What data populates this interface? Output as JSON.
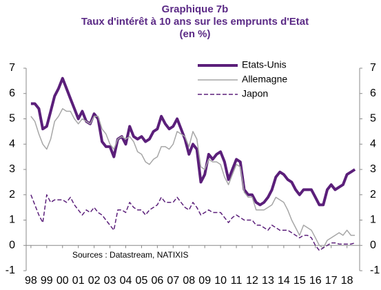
{
  "chart_data": {
    "type": "line",
    "title": "Graphique 7b",
    "subtitle": "Taux d'intérêt à 10 ans sur les emprunts d'Etat",
    "subtitle2": "(en %)",
    "source": "Sources : Datastream, NATIXIS",
    "x": [
      1998,
      1998.25,
      1998.5,
      1998.75,
      1999,
      1999.25,
      1999.5,
      1999.75,
      2000,
      2000.25,
      2000.5,
      2000.75,
      2001,
      2001.25,
      2001.5,
      2001.75,
      2002,
      2002.25,
      2002.5,
      2002.75,
      2003,
      2003.25,
      2003.5,
      2003.75,
      2004,
      2004.25,
      2004.5,
      2004.75,
      2005,
      2005.25,
      2005.5,
      2005.75,
      2006,
      2006.25,
      2006.5,
      2006.75,
      2007,
      2007.25,
      2007.5,
      2007.75,
      2008,
      2008.25,
      2008.5,
      2008.75,
      2009,
      2009.25,
      2009.5,
      2009.75,
      2010,
      2010.25,
      2010.5,
      2010.75,
      2011,
      2011.25,
      2011.5,
      2011.75,
      2012,
      2012.25,
      2012.5,
      2012.75,
      2013,
      2013.25,
      2013.5,
      2013.75,
      2014,
      2014.25,
      2014.5,
      2014.75,
      2015,
      2015.25,
      2015.5,
      2015.75,
      2016,
      2016.25,
      2016.5,
      2016.75,
      2017,
      2017.25,
      2017.5,
      2017.75,
      2018,
      2018.25,
      2018.5
    ],
    "series": [
      {
        "name": "Etats-Unis",
        "color": "#5b1f7a",
        "linewidth": 4,
        "dashed": false,
        "values": [
          5.6,
          5.6,
          5.4,
          4.6,
          4.7,
          5.3,
          5.9,
          6.2,
          6.6,
          6.2,
          5.8,
          5.4,
          5.0,
          5.3,
          4.9,
          4.8,
          5.2,
          5.0,
          4.1,
          3.9,
          3.9,
          3.5,
          4.2,
          4.3,
          4.0,
          4.7,
          4.3,
          4.2,
          4.3,
          4.1,
          4.2,
          4.5,
          4.6,
          5.1,
          4.8,
          4.6,
          4.7,
          5.0,
          4.6,
          4.2,
          3.6,
          4.0,
          3.8,
          2.5,
          2.8,
          3.6,
          3.4,
          3.6,
          3.7,
          3.3,
          2.6,
          3.0,
          3.4,
          3.3,
          2.2,
          2.0,
          2.0,
          1.7,
          1.6,
          1.7,
          1.9,
          2.2,
          2.7,
          2.9,
          2.8,
          2.6,
          2.5,
          2.2,
          2.0,
          2.2,
          2.2,
          2.2,
          1.9,
          1.6,
          1.6,
          2.2,
          2.4,
          2.2,
          2.3,
          2.4,
          2.8,
          2.9,
          3.0
        ]
      },
      {
        "name": "Allemagne",
        "color": "#a6a6a6",
        "linewidth": 1.5,
        "dashed": false,
        "values": [
          5.1,
          4.9,
          4.4,
          4.0,
          3.8,
          4.2,
          4.9,
          5.1,
          5.4,
          5.3,
          5.3,
          5.0,
          4.8,
          5.0,
          4.9,
          4.8,
          5.1,
          5.1,
          4.6,
          4.4,
          4.0,
          3.8,
          4.2,
          4.3,
          4.2,
          4.3,
          4.1,
          3.7,
          3.6,
          3.3,
          3.2,
          3.4,
          3.5,
          3.9,
          3.9,
          3.8,
          4.0,
          4.5,
          4.4,
          4.3,
          3.9,
          4.5,
          4.2,
          3.1,
          3.0,
          3.4,
          3.3,
          3.3,
          3.2,
          2.7,
          2.4,
          2.8,
          3.2,
          3.1,
          2.1,
          1.9,
          1.9,
          1.4,
          1.4,
          1.4,
          1.5,
          1.6,
          1.9,
          1.8,
          1.7,
          1.4,
          1.0,
          0.7,
          0.4,
          0.8,
          0.7,
          0.6,
          0.3,
          0.0,
          -0.1,
          0.2,
          0.3,
          0.4,
          0.5,
          0.4,
          0.6,
          0.4,
          0.4
        ]
      },
      {
        "name": "Japon",
        "color": "#5b1f7a",
        "linewidth": 1.5,
        "dashed": true,
        "values": [
          2.0,
          1.6,
          1.2,
          0.9,
          2.0,
          1.7,
          1.8,
          1.8,
          1.8,
          1.7,
          1.9,
          1.6,
          1.4,
          1.2,
          1.4,
          1.3,
          1.5,
          1.3,
          1.2,
          1.0,
          0.8,
          0.6,
          1.4,
          1.4,
          1.3,
          1.7,
          1.5,
          1.4,
          1.4,
          1.2,
          1.4,
          1.5,
          1.6,
          1.9,
          1.7,
          1.7,
          1.7,
          1.9,
          1.7,
          1.5,
          1.4,
          1.7,
          1.5,
          1.2,
          1.3,
          1.4,
          1.3,
          1.3,
          1.3,
          1.1,
          0.9,
          1.1,
          1.2,
          1.1,
          1.0,
          1.0,
          1.0,
          0.8,
          0.8,
          0.7,
          0.6,
          0.8,
          0.7,
          0.6,
          0.6,
          0.6,
          0.5,
          0.4,
          0.3,
          0.4,
          0.4,
          0.3,
          0.0,
          -0.2,
          -0.1,
          0.0,
          0.1,
          0.1,
          0.05,
          0.05,
          0.05,
          0.05,
          0.1
        ]
      }
    ],
    "xlim": [
      1997.7,
      2018.8
    ],
    "xticks": [
      {
        "value": 1998,
        "label": "98"
      },
      {
        "value": 1999,
        "label": "99"
      },
      {
        "value": 2000,
        "label": "00"
      },
      {
        "value": 2001,
        "label": "01"
      },
      {
        "value": 2002,
        "label": "02"
      },
      {
        "value": 2003,
        "label": "03"
      },
      {
        "value": 2004,
        "label": "04"
      },
      {
        "value": 2005,
        "label": "05"
      },
      {
        "value": 2006,
        "label": "06"
      },
      {
        "value": 2007,
        "label": "07"
      },
      {
        "value": 2008,
        "label": "08"
      },
      {
        "value": 2009,
        "label": "09"
      },
      {
        "value": 2010,
        "label": "10"
      },
      {
        "value": 2011,
        "label": "11"
      },
      {
        "value": 2012,
        "label": "12"
      },
      {
        "value": 2013,
        "label": "13"
      },
      {
        "value": 2014,
        "label": "14"
      },
      {
        "value": 2015,
        "label": "15"
      },
      {
        "value": 2016,
        "label": "16"
      },
      {
        "value": 2017,
        "label": "17"
      },
      {
        "value": 2018,
        "label": "18"
      }
    ],
    "ylim": [
      -1,
      7
    ],
    "yticks": [
      -1,
      0,
      1,
      2,
      3,
      4,
      5,
      6,
      7
    ],
    "grid": false
  }
}
